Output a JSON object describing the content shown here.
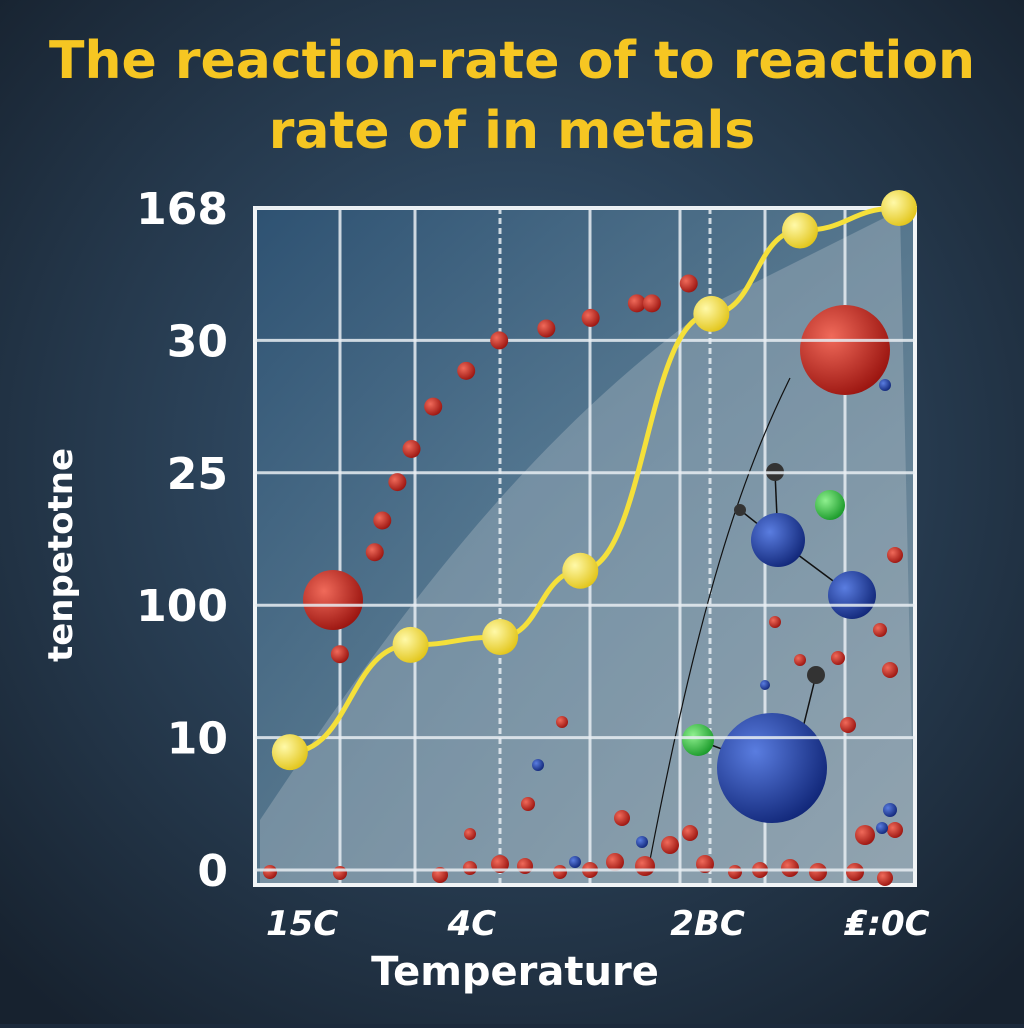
{
  "chart_data": {
    "type": "line",
    "title": [
      "The reaction-rate of to reaction",
      "rate of in metals"
    ],
    "x_label": "Temperature",
    "y_label": "tenpetotne",
    "xlim": [
      0,
      7
    ],
    "xticks": [
      {
        "value": 0.5,
        "label": "15C"
      },
      {
        "value": 2.3,
        "label": "4C"
      },
      {
        "value": 4.8,
        "label": "2BC"
      },
      {
        "value": 6.7,
        "label": "₤:0C"
      }
    ],
    "ylim": [
      0,
      5
    ],
    "yticks": [
      {
        "value": 0,
        "label": "0"
      },
      {
        "value": 1,
        "label": "10"
      },
      {
        "value": 2,
        "label": "100"
      },
      {
        "value": 3,
        "label": "25"
      },
      {
        "value": 4,
        "label": "30"
      },
      {
        "value": 5,
        "label": "168"
      }
    ],
    "grid": true,
    "series": [
      {
        "color": "#f5e03a",
        "x": [
          0.37,
          1.65,
          2.6,
          3.45,
          4.84,
          5.78,
          6.83
        ],
        "values": [
          0.89,
          1.7,
          1.76,
          2.26,
          4.2,
          4.83,
          5.0
        ]
      },
      {
        "color": "#d42a22",
        "x": [
          0.9,
          1.27,
          1.35,
          1.51,
          1.66,
          1.89,
          2.24,
          2.59,
          3.09,
          3.56,
          4.05,
          4.21,
          4.6
        ],
        "values": [
          1.63,
          2.4,
          2.64,
          2.93,
          3.18,
          3.5,
          3.77,
          4.0,
          4.09,
          4.17,
          4.28,
          4.28,
          4.43
        ]
      }
    ]
  }
}
